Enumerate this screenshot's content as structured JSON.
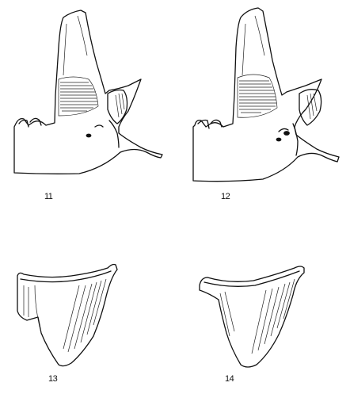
{
  "figures": [
    {
      "id": "11",
      "label": "11"
    },
    {
      "id": "12",
      "label": "12"
    },
    {
      "id": "13",
      "label": "13"
    },
    {
      "id": "14",
      "label": "14"
    }
  ]
}
